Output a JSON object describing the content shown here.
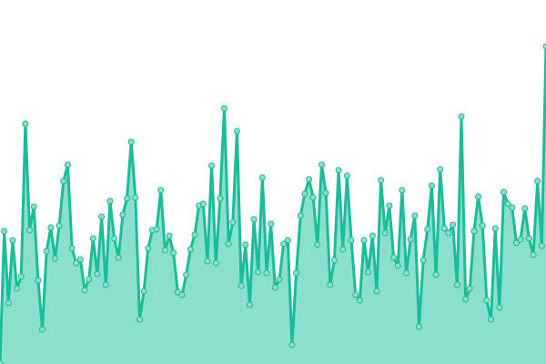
{
  "chart_data": {
    "type": "area",
    "title": "",
    "xlabel": "",
    "ylabel": "",
    "ylim": [
      0,
      400
    ],
    "grid": false,
    "legend": "none",
    "markers": true,
    "colors": {
      "line": "#1abc9c",
      "fill": "#8ae0cd",
      "marker_fill": "#8ae0cd",
      "marker_stroke": "#1fb894"
    },
    "values": [
      1,
      146,
      67,
      136,
      83,
      96,
      264,
      147,
      173,
      92,
      38,
      124,
      150,
      116,
      152,
      201,
      219,
      127,
      111,
      115,
      81,
      93,
      138,
      99,
      162,
      87,
      179,
      138,
      117,
      164,
      182,
      244,
      183,
      49,
      80,
      127,
      147,
      148,
      191,
      125,
      141,
      122,
      79,
      76,
      98,
      126,
      142,
      174,
      176,
      113,
      218,
      111,
      182,
      281,
      132,
      156,
      256,
      86,
      131,
      65,
      159,
      101,
      205,
      100,
      154,
      84,
      93,
      132,
      136,
      21,
      100,
      163,
      187,
      203,
      183,
      131,
      219,
      188,
      87,
      114,
      213,
      126,
      207,
      136,
      76,
      70,
      136,
      101,
      141,
      80,
      202,
      144,
      174,
      117,
      108,
      191,
      100,
      137,
      163,
      41,
      114,
      148,
      196,
      98,
      214,
      149,
      144,
      153,
      87,
      272,
      71,
      83,
      146,
      184,
      152,
      70,
      49,
      149,
      62,
      189,
      176,
      172,
      133,
      137,
      171,
      138,
      120,
      201,
      130,
      349
    ]
  }
}
